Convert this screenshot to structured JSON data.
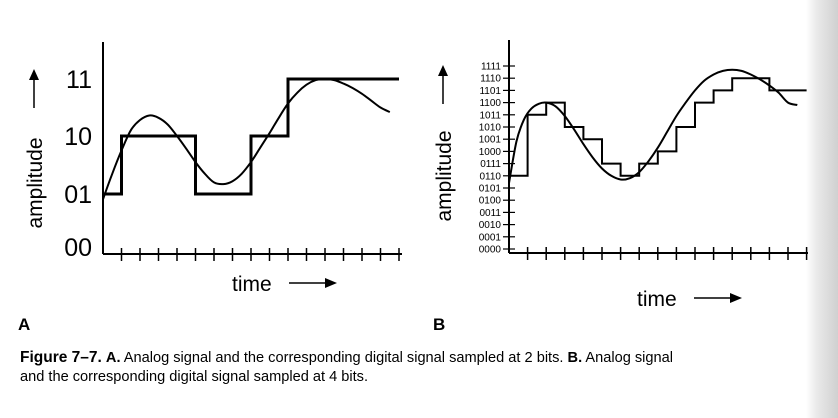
{
  "caption": {
    "figure_label": "Figure 7–7.",
    "part_a_label": "A.",
    "part_a_text": "Analog signal and the corresponding digital signal sampled at 2 bits.",
    "part_b_label": "B.",
    "part_b_text": "Analog signal",
    "line2": "and the corresponding digital signal sampled at 4 bits."
  },
  "chart_data": [
    {
      "type": "line",
      "panel_label": "A",
      "xlabel": "time",
      "ylabel": "amplitude",
      "y_levels": [
        "00",
        "01",
        "10",
        "11"
      ],
      "x_ticks": 16,
      "analog_curve": {
        "x": [
          0,
          0.5,
          1,
          1.5,
          2,
          2.5,
          3,
          3.5,
          4,
          4.5,
          5,
          5.5,
          6,
          6.5,
          7,
          7.5,
          8,
          8.5,
          9,
          9.5,
          10,
          10.5,
          11,
          11.5,
          12,
          12.5,
          13,
          13.5,
          14,
          14.5,
          15,
          15.5
        ],
        "y": [
          0.9,
          1.35,
          1.75,
          2.1,
          2.28,
          2.36,
          2.32,
          2.2,
          2.0,
          1.78,
          1.55,
          1.35,
          1.2,
          1.17,
          1.22,
          1.35,
          1.55,
          1.8,
          2.05,
          2.32,
          2.57,
          2.76,
          2.9,
          2.98,
          3.0,
          2.98,
          2.92,
          2.84,
          2.74,
          2.62,
          2.5,
          2.42
        ]
      },
      "digital_signal": {
        "x": [
          0,
          1,
          1,
          5,
          5,
          8,
          8,
          10,
          10,
          10,
          10,
          16
        ],
        "y": [
          1,
          1,
          2,
          2,
          1,
          1,
          1,
          1,
          2,
          2,
          3,
          3
        ],
        "steps": [
          [
            0,
            1
          ],
          [
            1,
            2
          ],
          [
            5,
            1
          ],
          [
            8,
            2
          ],
          [
            10,
            3
          ],
          [
            16,
            3
          ]
        ]
      }
    },
    {
      "type": "line",
      "panel_label": "B",
      "xlabel": "time",
      "ylabel": "amplitude",
      "y_levels": [
        "0000",
        "0001",
        "0010",
        "0011",
        "0100",
        "0101",
        "0110",
        "0111",
        "1000",
        "1001",
        "1010",
        "1011",
        "1100",
        "1101",
        "1110",
        "1111"
      ],
      "x_ticks": 16,
      "analog_curve": {
        "x": [
          0,
          0.4,
          0.8,
          1.2,
          1.6,
          2,
          2.5,
          3,
          3.5,
          4,
          4.5,
          5,
          5.5,
          6,
          6.5,
          7,
          7.5,
          8,
          8.5,
          9,
          9.5,
          10,
          10.5,
          11,
          11.5,
          12,
          12.5,
          13,
          13.5,
          14,
          14.5,
          15,
          15.5
        ],
        "y": [
          5.4,
          8.8,
          10.6,
          11.5,
          11.9,
          12.0,
          11.7,
          10.9,
          9.8,
          8.6,
          7.5,
          6.6,
          6.0,
          5.7,
          5.8,
          6.3,
          7.2,
          8.3,
          9.6,
          10.9,
          12.0,
          13.0,
          13.8,
          14.3,
          14.6,
          14.7,
          14.6,
          14.3,
          13.9,
          13.4,
          12.8,
          12.0,
          11.8
        ]
      },
      "digital_signal": {
        "steps": [
          [
            0,
            6
          ],
          [
            1,
            11
          ],
          [
            2,
            12
          ],
          [
            3,
            10
          ],
          [
            4,
            9
          ],
          [
            5,
            7
          ],
          [
            6,
            6
          ],
          [
            7,
            7
          ],
          [
            8,
            8
          ],
          [
            9,
            10
          ],
          [
            10,
            12
          ],
          [
            11,
            13
          ],
          [
            12,
            14
          ],
          [
            14,
            13
          ],
          [
            16,
            13
          ]
        ]
      }
    }
  ]
}
